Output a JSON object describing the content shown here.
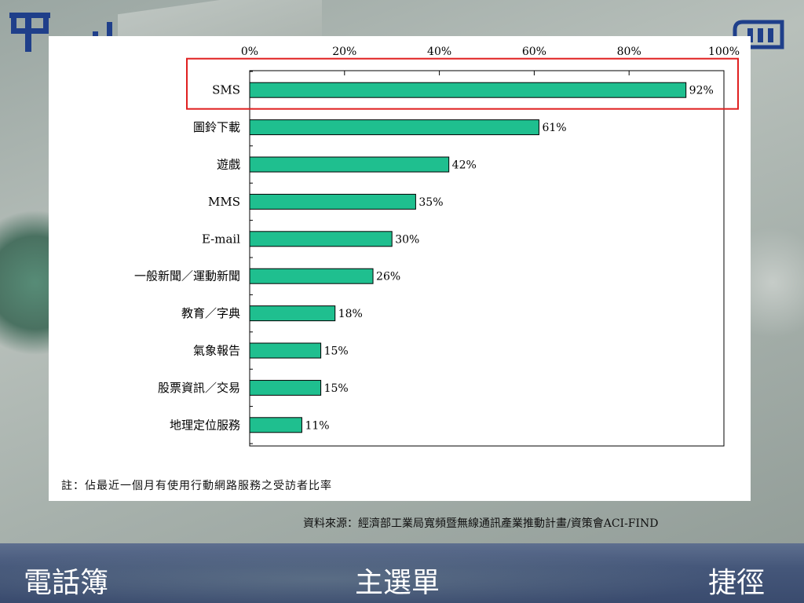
{
  "chart_data": {
    "type": "bar",
    "orientation": "horizontal",
    "categories": [
      "SMS",
      "圖鈴下載",
      "遊戲",
      "MMS",
      "E-mail",
      "一般新聞／運動新聞",
      "教育／字典",
      "氣象報告",
      "股票資訊／交易",
      "地理定位服務"
    ],
    "values": [
      92,
      61,
      42,
      35,
      30,
      26,
      18,
      15,
      15,
      11
    ],
    "value_labels": [
      "92%",
      "61%",
      "42%",
      "35%",
      "30%",
      "26%",
      "18%",
      "15%",
      "15%",
      "11%"
    ],
    "x_ticks": [
      "0%",
      "20%",
      "40%",
      "60%",
      "80%",
      "100%"
    ],
    "xlim": [
      0,
      100
    ],
    "x_axis_position": "top",
    "grid": false,
    "highlight_category": "SMS",
    "bar_color": "#1fbf8f",
    "highlight_color": "#e02020"
  },
  "note": "註：佔最近一個月有使用行動網路服務之受訪者比率",
  "source": "資料來源：經濟部工業局寬頻暨無線通訊產業推動計畫/資策會ACI-FIND",
  "softkeys": {
    "left": "電話簿",
    "center": "主選單",
    "right": "捷徑"
  },
  "icons": {
    "top_left": "phone-logo-icon",
    "signal": "signal-bars-icon",
    "top_right": "battery-icon"
  }
}
